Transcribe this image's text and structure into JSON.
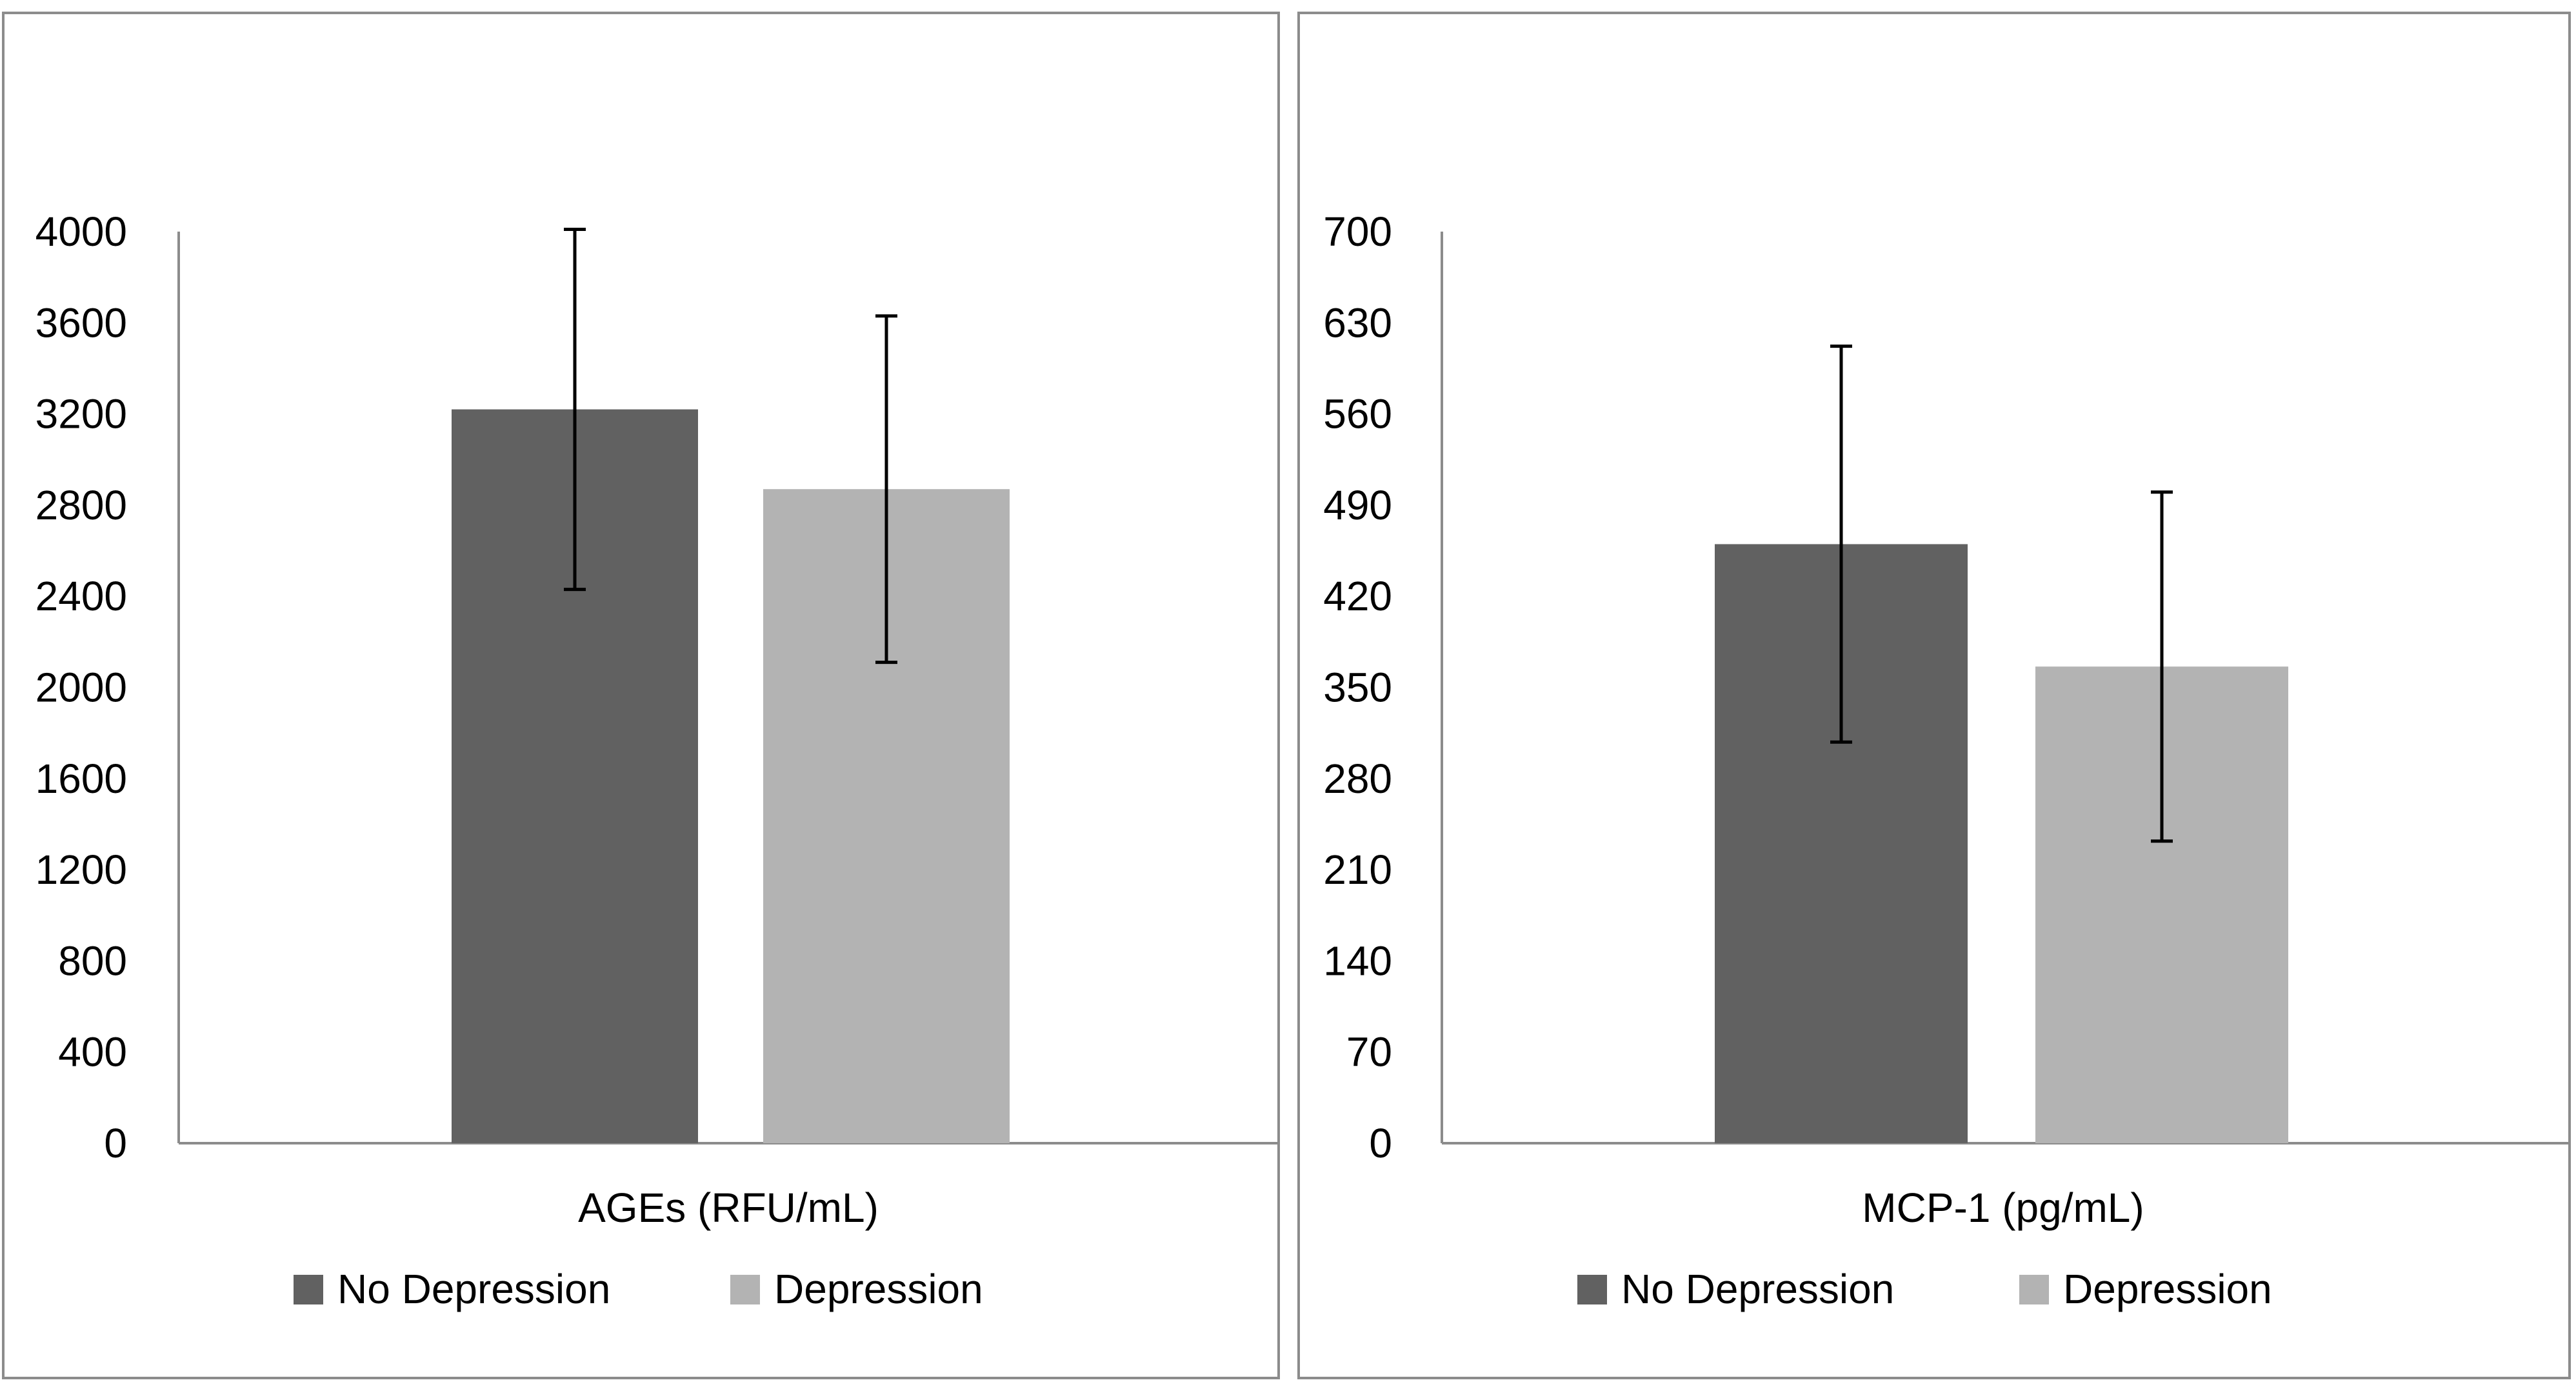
{
  "chart_data": [
    {
      "type": "bar",
      "title": "",
      "xlabel": "AGEs (RFU/mL)",
      "ylabel": "",
      "ylim": [
        0,
        4000
      ],
      "yticks": [
        0,
        400,
        800,
        1200,
        1600,
        2000,
        2400,
        2800,
        3200,
        3600,
        4000
      ],
      "categories": [
        "AGEs (RFU/mL)"
      ],
      "series": [
        {
          "name": "No Depression",
          "values": [
            3220
          ],
          "error": [
            790
          ],
          "color": "#616161"
        },
        {
          "name": "Depression",
          "values": [
            2870
          ],
          "error": [
            760
          ],
          "color": "#b3b3b3"
        }
      ],
      "legend": [
        "No Depression",
        "Depression"
      ],
      "legend_position": "bottom",
      "grid": false
    },
    {
      "type": "bar",
      "title": "",
      "xlabel": "MCP-1 (pg/mL)",
      "ylabel": "",
      "ylim": [
        0,
        700
      ],
      "yticks": [
        0,
        70,
        140,
        210,
        280,
        350,
        420,
        490,
        560,
        630,
        700
      ],
      "categories": [
        "MCP-1 (pg/mL)"
      ],
      "series": [
        {
          "name": "No Depression",
          "values": [
            460
          ],
          "error": [
            152
          ],
          "color": "#616161"
        },
        {
          "name": "Depression",
          "values": [
            366
          ],
          "error": [
            134
          ],
          "color": "#b3b3b3"
        }
      ],
      "legend": [
        "No Depression",
        "Depression"
      ],
      "legend_position": "bottom",
      "grid": false
    }
  ]
}
